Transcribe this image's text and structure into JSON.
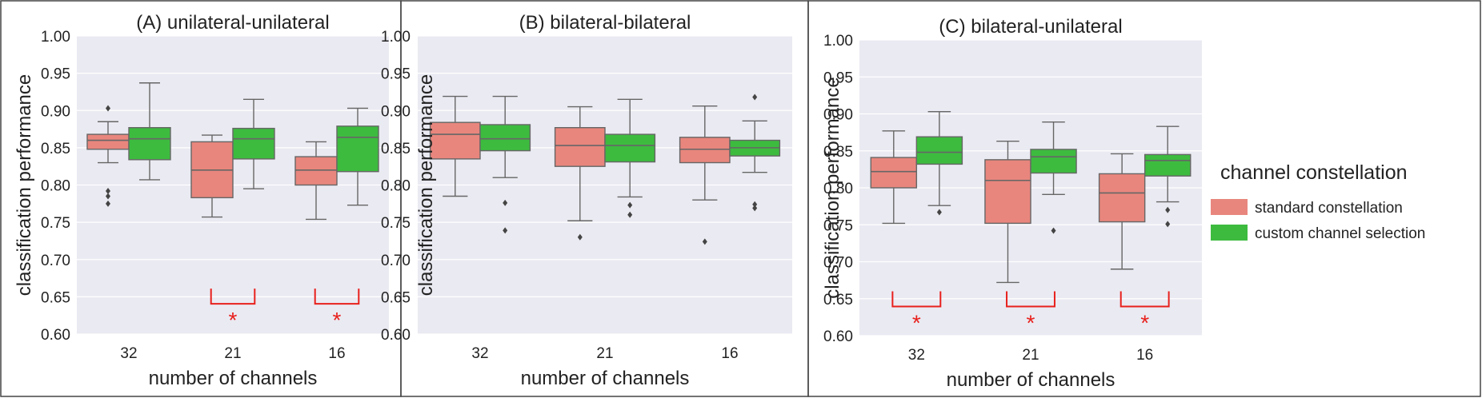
{
  "colors": {
    "standard": "#E8867D",
    "custom": "#3DBB3F",
    "plot_bg": "#EAEAF2",
    "grid": "#FFFFFF",
    "whisker": "#666666",
    "significance": "#E8201C",
    "border": "#444444"
  },
  "legend": {
    "title": "channel constellation",
    "entries": [
      {
        "label": "standard constellation",
        "color_key": "standard"
      },
      {
        "label": "custom channel selection",
        "color_key": "custom"
      }
    ]
  },
  "chart_data": [
    {
      "type": "box",
      "title": "(A) unilateral-unilateral",
      "xlabel": "number of channels",
      "ylabel": "classification performance",
      "ylim": [
        0.6,
        1.0
      ],
      "yticks": [
        "0.60",
        "0.65",
        "0.70",
        "0.75",
        "0.80",
        "0.85",
        "0.90",
        "0.95",
        "1.00"
      ],
      "categories": [
        "32",
        "21",
        "16"
      ],
      "series": [
        {
          "name": "standard constellation",
          "boxes": [
            {
              "whislo": 0.83,
              "q1": 0.848,
              "med": 0.86,
              "q3": 0.868,
              "whishi": 0.885,
              "fliers": [
                0.903,
                0.792,
                0.785,
                0.775
              ]
            },
            {
              "whislo": 0.757,
              "q1": 0.783,
              "med": 0.82,
              "q3": 0.858,
              "whishi": 0.867,
              "fliers": []
            },
            {
              "whislo": 0.754,
              "q1": 0.8,
              "med": 0.82,
              "q3": 0.838,
              "whishi": 0.858,
              "fliers": []
            }
          ]
        },
        {
          "name": "custom channel selection",
          "boxes": [
            {
              "whislo": 0.807,
              "q1": 0.834,
              "med": 0.862,
              "q3": 0.877,
              "whishi": 0.937,
              "fliers": []
            },
            {
              "whislo": 0.795,
              "q1": 0.835,
              "med": 0.862,
              "q3": 0.876,
              "whishi": 0.915,
              "fliers": []
            },
            {
              "whislo": 0.773,
              "q1": 0.818,
              "med": 0.864,
              "q3": 0.879,
              "whishi": 0.903,
              "fliers": []
            }
          ]
        }
      ],
      "significance": [
        {
          "category": "21",
          "label": "*"
        },
        {
          "category": "16",
          "label": "*"
        }
      ]
    },
    {
      "type": "box",
      "title": "(B) bilateral-bilateral",
      "xlabel": "number of channels",
      "ylabel": "classification performance",
      "ylim": [
        0.6,
        1.0
      ],
      "yticks": [
        "0.60",
        "0.65",
        "0.70",
        "0.75",
        "0.80",
        "0.85",
        "0.90",
        "0.95",
        "1.00"
      ],
      "categories": [
        "32",
        "21",
        "16"
      ],
      "series": [
        {
          "name": "standard constellation",
          "boxes": [
            {
              "whislo": 0.785,
              "q1": 0.835,
              "med": 0.868,
              "q3": 0.884,
              "whishi": 0.919,
              "fliers": []
            },
            {
              "whislo": 0.752,
              "q1": 0.825,
              "med": 0.853,
              "q3": 0.877,
              "whishi": 0.905,
              "fliers": [
                0.73
              ]
            },
            {
              "whislo": 0.78,
              "q1": 0.83,
              "med": 0.848,
              "q3": 0.864,
              "whishi": 0.906,
              "fliers": [
                0.724
              ]
            }
          ]
        },
        {
          "name": "custom channel selection",
          "boxes": [
            {
              "whislo": 0.81,
              "q1": 0.846,
              "med": 0.862,
              "q3": 0.881,
              "whishi": 0.919,
              "fliers": [
                0.776,
                0.739
              ]
            },
            {
              "whislo": 0.784,
              "q1": 0.831,
              "med": 0.853,
              "q3": 0.868,
              "whishi": 0.915,
              "fliers": [
                0.773,
                0.76
              ]
            },
            {
              "whislo": 0.817,
              "q1": 0.839,
              "med": 0.85,
              "q3": 0.86,
              "whishi": 0.886,
              "fliers": [
                0.918,
                0.774,
                0.769
              ]
            }
          ]
        }
      ],
      "significance": []
    },
    {
      "type": "box",
      "title": "(C) bilateral-unilateral",
      "xlabel": "number of channels",
      "ylabel": "classification performance",
      "ylim": [
        0.6,
        1.0
      ],
      "yticks": [
        "0.60",
        "0.65",
        "0.70",
        "0.75",
        "0.80",
        "0.85",
        "0.90",
        "0.95",
        "1.00"
      ],
      "categories": [
        "32",
        "21",
        "16"
      ],
      "series": [
        {
          "name": "standard constellation",
          "boxes": [
            {
              "whislo": 0.752,
              "q1": 0.8,
              "med": 0.822,
              "q3": 0.841,
              "whishi": 0.877,
              "fliers": []
            },
            {
              "whislo": 0.672,
              "q1": 0.752,
              "med": 0.81,
              "q3": 0.838,
              "whishi": 0.863,
              "fliers": []
            },
            {
              "whislo": 0.69,
              "q1": 0.754,
              "med": 0.793,
              "q3": 0.819,
              "whishi": 0.846,
              "fliers": []
            }
          ]
        },
        {
          "name": "custom channel selection",
          "boxes": [
            {
              "whislo": 0.776,
              "q1": 0.832,
              "med": 0.848,
              "q3": 0.869,
              "whishi": 0.903,
              "fliers": [
                0.767
              ]
            },
            {
              "whislo": 0.791,
              "q1": 0.82,
              "med": 0.842,
              "q3": 0.852,
              "whishi": 0.889,
              "fliers": [
                0.742
              ]
            },
            {
              "whislo": 0.781,
              "q1": 0.816,
              "med": 0.837,
              "q3": 0.845,
              "whishi": 0.883,
              "fliers": [
                0.77,
                0.751
              ]
            }
          ]
        }
      ],
      "significance": [
        {
          "category": "32",
          "label": "*"
        },
        {
          "category": "21",
          "label": "*"
        },
        {
          "category": "16",
          "label": "*"
        }
      ]
    }
  ]
}
